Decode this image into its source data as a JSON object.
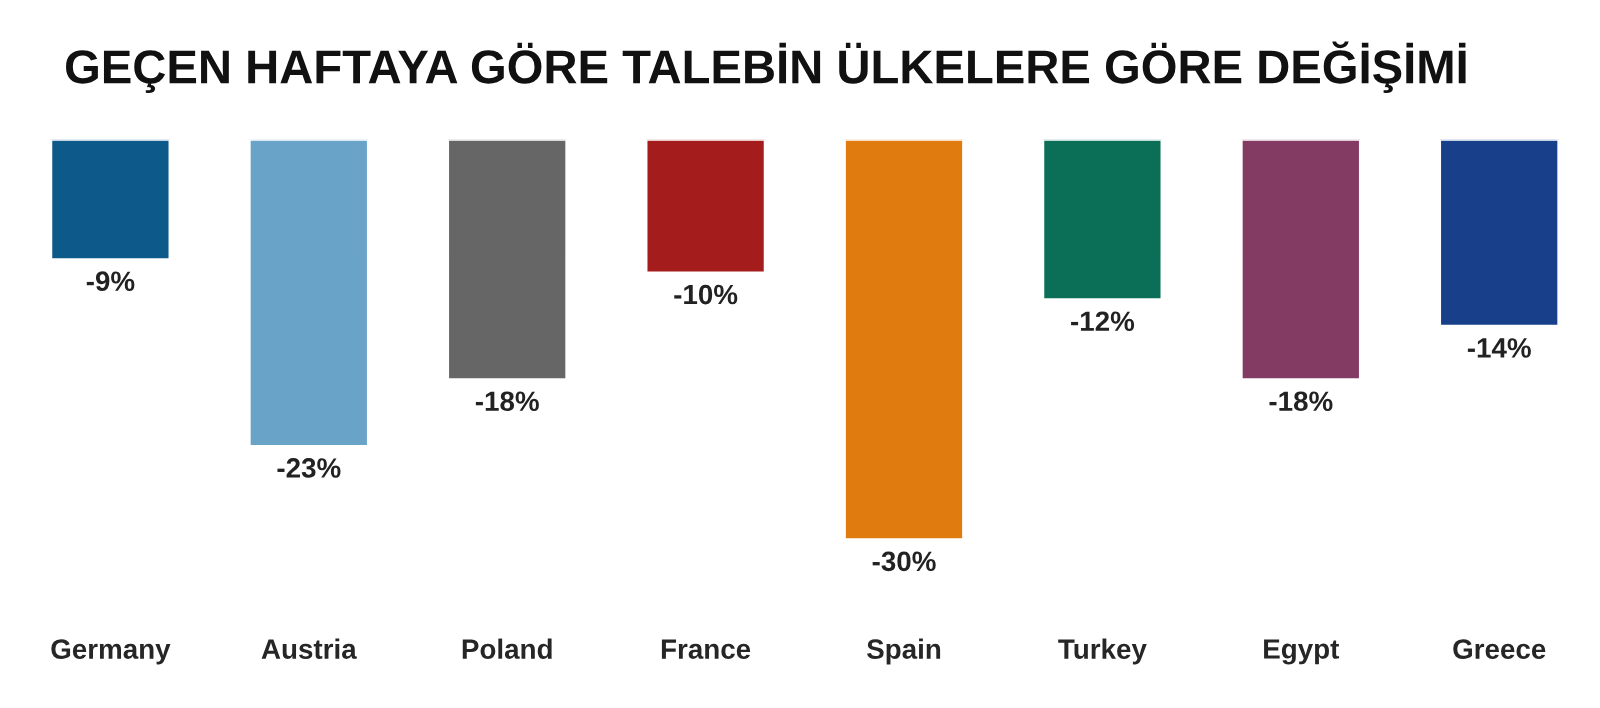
{
  "chart_data": {
    "type": "bar",
    "title": "GEÇEN HAFTAYA GÖRE TALEBİN ÜLKELERE GÖRE DEĞİŞİMİ",
    "categories": [
      "Germany",
      "Austria",
      "Poland",
      "France",
      "Spain",
      "Turkey",
      "Egypt",
      "Greece"
    ],
    "values": [
      -9,
      -23,
      -18,
      -10,
      -30,
      -12,
      -18,
      -14
    ],
    "value_labels": [
      "-9%",
      "-23%",
      "-18%",
      "-10%",
      "-30%",
      "-12%",
      "-18%",
      "-14%"
    ],
    "colors": [
      "#0d5a8a",
      "#6aa3c8",
      "#666666",
      "#a51c1c",
      "#e07b10",
      "#0b6e57",
      "#833a63",
      "#173f8a"
    ],
    "tick_labels": "x",
    "grid": false,
    "legend": false
  }
}
